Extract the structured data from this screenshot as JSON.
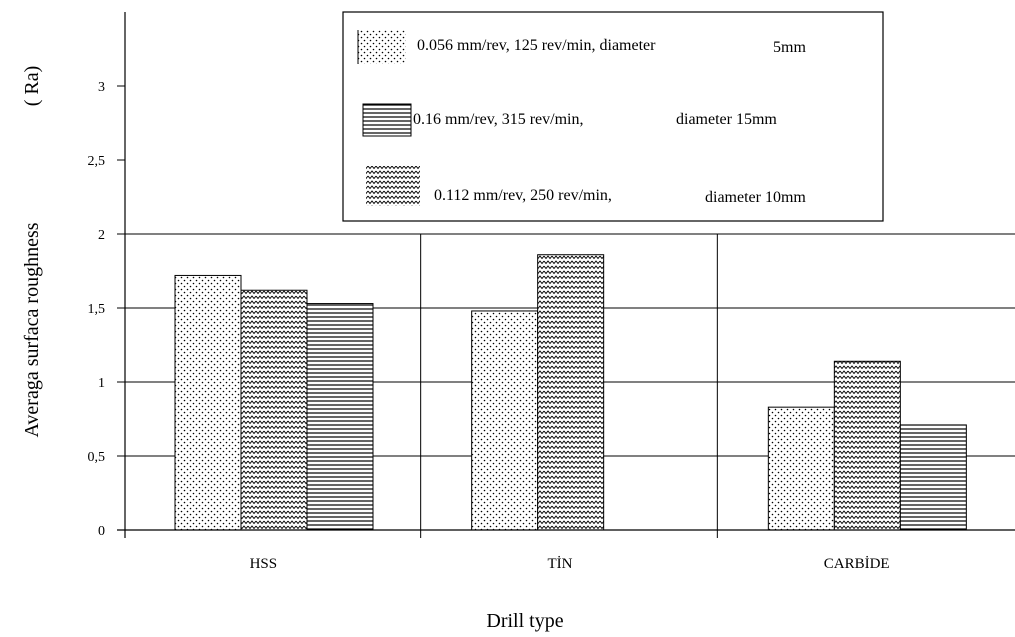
{
  "chart_data": {
    "type": "bar",
    "xlabel": "Drill type",
    "ylabel": "Averaga surfaca roughness",
    "ylabel_unit": "( Ra)",
    "categories": [
      "HSS",
      "TİN",
      "CARBİDE"
    ],
    "ylim": [
      0,
      3.5
    ],
    "yticks": [
      0,
      0.5,
      1,
      1.5,
      2,
      2.5,
      3
    ],
    "ytick_labels": [
      "0",
      "0,5",
      "1",
      "1,5",
      "2",
      "2,5",
      "3"
    ],
    "grid": "horizontal lines at 0.5 to 2 and vertical lines separating drill types",
    "legend_position": "top-center",
    "series": [
      {
        "name": "0.056 mm/rev, 125 rev/min, diameter 5mm",
        "pattern": "dots",
        "values": [
          1.72,
          1.48,
          0.83
        ]
      },
      {
        "name": "0.112 mm/rev, 250 rev/min, diameter 10mm",
        "pattern": "zigzag",
        "values": [
          1.62,
          1.86,
          1.14
        ]
      },
      {
        "name": "0.16 mm/rev, 315 rev/min, diameter 15mm",
        "pattern": "horizontal-lines",
        "values": [
          1.53,
          null,
          0.71
        ]
      }
    ],
    "legend": [
      {
        "text": "0.056 mm/rev, 125 rev/min, diameter",
        "suffix": "5mm",
        "pattern": "dots"
      },
      {
        "text": "0.16 mm/rev, 315 rev/min,",
        "suffix": "diameter 15mm",
        "pattern": "horizontal-lines"
      },
      {
        "text": "0.112 mm/rev, 250 rev/min,",
        "suffix": "diameter 10mm",
        "pattern": "zigzag"
      }
    ]
  }
}
